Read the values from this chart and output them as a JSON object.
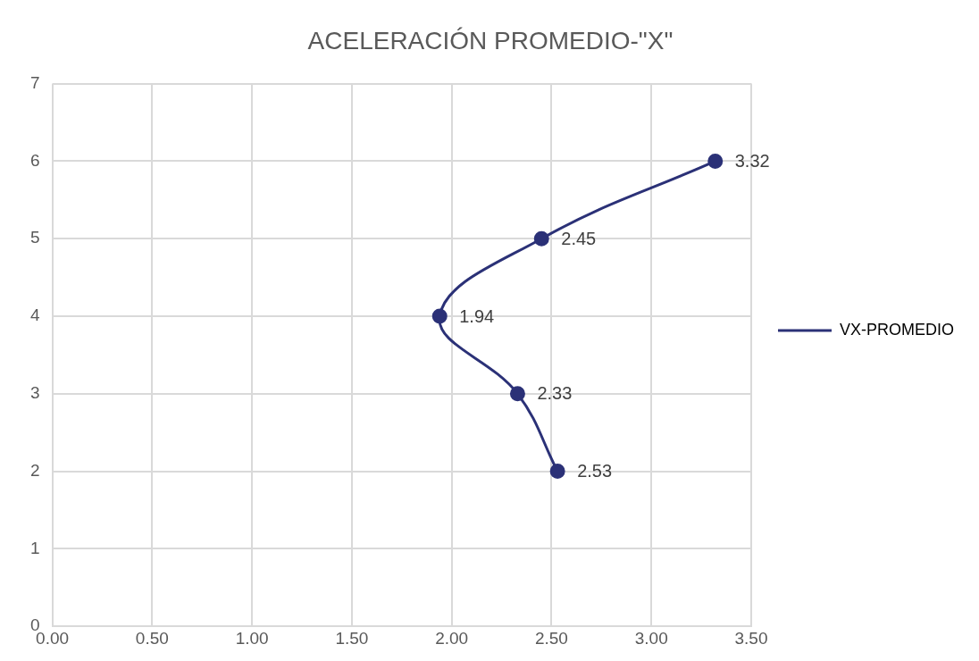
{
  "chart_data": {
    "type": "line",
    "title": "ACELERACIÓN PROMEDIO-\"X\"",
    "series": [
      {
        "name": "VX-PROMEDIO",
        "color": "#2b3177",
        "x": [
          2.53,
          2.33,
          1.94,
          2.45,
          3.32
        ],
        "values": [
          2,
          3,
          4,
          5,
          6
        ]
      }
    ],
    "annotations": [
      {
        "text": "2.53",
        "x": 2.53,
        "y": 2
      },
      {
        "text": "2.33",
        "x": 2.33,
        "y": 3
      },
      {
        "text": "1.94",
        "x": 1.94,
        "y": 4
      },
      {
        "text": "2.45",
        "x": 2.45,
        "y": 5
      },
      {
        "text": "3.32",
        "x": 3.32,
        "y": 6
      }
    ],
    "xlim": [
      0,
      3.5
    ],
    "xticks": [
      {
        "value": 0,
        "label": "0.00"
      },
      {
        "value": 0.5,
        "label": "0.50"
      },
      {
        "value": 1,
        "label": "1.00"
      },
      {
        "value": 1.5,
        "label": "1.50"
      },
      {
        "value": 2,
        "label": "2.00"
      },
      {
        "value": 2.5,
        "label": "2.50"
      },
      {
        "value": 3,
        "label": "3.00"
      },
      {
        "value": 3.5,
        "label": "3.50"
      }
    ],
    "ylim": [
      0,
      7
    ],
    "yticks": [
      0,
      1,
      2,
      3,
      4,
      5,
      6,
      7
    ],
    "grid": true,
    "legend": "right",
    "marker": "circle",
    "line_style": "solid"
  }
}
